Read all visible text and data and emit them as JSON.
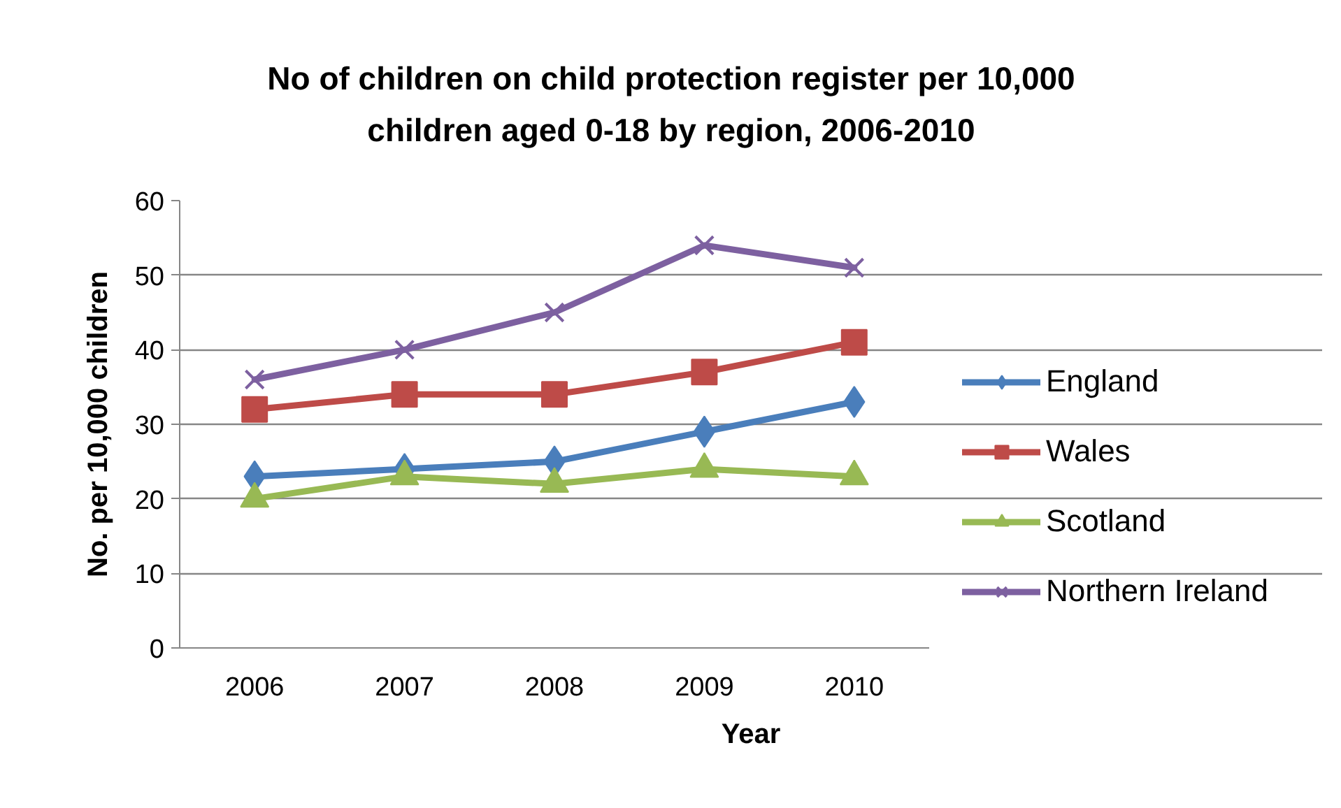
{
  "chart_data": {
    "type": "line",
    "title": "No of children on child protection register per 10,000 children aged 0-18 by region, 2006-2010",
    "xlabel": "Year",
    "ylabel": "No. per 10,000 children",
    "categories": [
      "2006",
      "2007",
      "2008",
      "2009",
      "2010"
    ],
    "series": [
      {
        "name": "England",
        "color": "#4a7ebb",
        "marker": "diamond",
        "values": [
          23,
          24,
          25,
          29,
          33
        ]
      },
      {
        "name": "Wales",
        "color": "#be4b48",
        "marker": "square",
        "values": [
          32,
          34,
          34,
          37,
          41
        ]
      },
      {
        "name": "Scotland",
        "color": "#98b954",
        "marker": "triangle",
        "values": [
          20,
          23,
          22,
          24,
          23
        ]
      },
      {
        "name": "Northern Ireland",
        "color": "#7d60a0",
        "marker": "cross",
        "values": [
          36,
          40,
          45,
          54,
          51
        ]
      }
    ],
    "ylim": [
      0,
      60
    ],
    "yticks": [
      0,
      10,
      20,
      30,
      40,
      50,
      60
    ],
    "grid": "y",
    "legend": "right",
    "line_style": "solid"
  }
}
